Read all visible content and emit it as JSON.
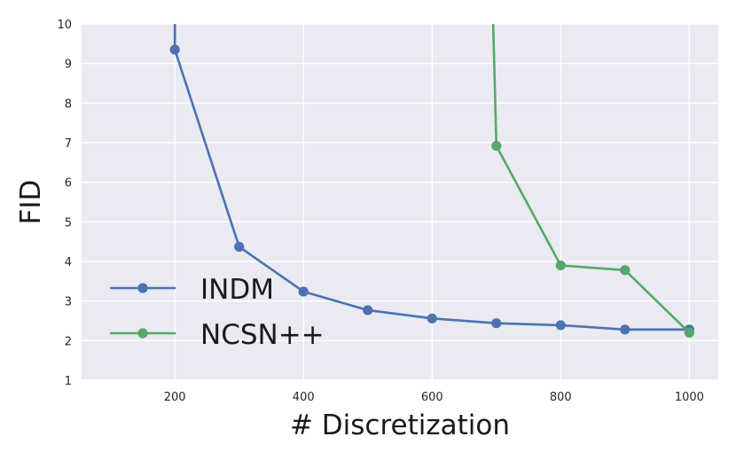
{
  "chart_data": {
    "type": "line",
    "title": "",
    "xlabel": "# Discretization",
    "ylabel": "FID",
    "xlim": [
      55,
      1045
    ],
    "ylim": [
      1,
      10
    ],
    "xticks": [
      200,
      400,
      600,
      800,
      1000
    ],
    "yticks": [
      1,
      2,
      3,
      4,
      5,
      6,
      7,
      8,
      9,
      10
    ],
    "grid": true,
    "legend_position": "lower-left",
    "series": [
      {
        "name": "INDM",
        "color": "#4c72b0",
        "x": [
          200,
          300,
          400,
          500,
          600,
          700,
          800,
          900,
          1000
        ],
        "y": [
          9.35,
          4.37,
          3.24,
          2.77,
          2.56,
          2.44,
          2.39,
          2.28,
          2.28
        ],
        "line_start": {
          "x": 200,
          "y": 10.0
        }
      },
      {
        "name": "NCSN++",
        "color": "#55a868",
        "x": [
          700,
          800,
          900,
          1000
        ],
        "y": [
          6.92,
          3.9,
          3.78,
          2.2
        ],
        "line_start": {
          "x": 695,
          "y": 10.0
        }
      }
    ]
  }
}
